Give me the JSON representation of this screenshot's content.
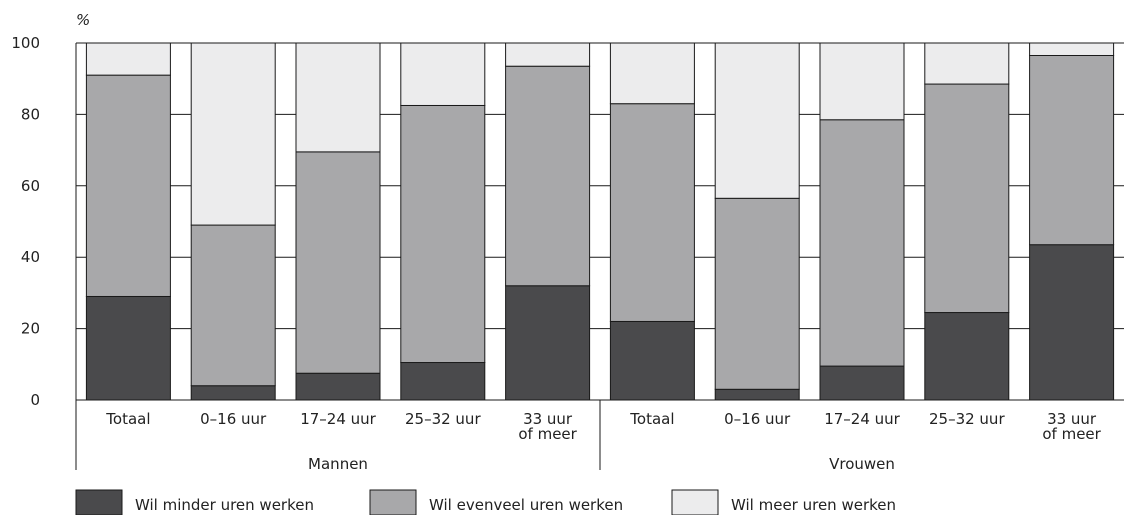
{
  "chart_data": {
    "type": "bar",
    "stacked": true,
    "y_unit_label": "%",
    "ylim": [
      0,
      100
    ],
    "yticks": [
      0,
      20,
      40,
      60,
      80,
      100
    ],
    "grid": true,
    "groups": [
      {
        "name": "Mannen",
        "categories": [
          {
            "lines": [
              "Totaal"
            ]
          },
          {
            "lines": [
              "0–16 uur"
            ]
          },
          {
            "lines": [
              "17–24 uur"
            ]
          },
          {
            "lines": [
              "25–32 uur"
            ]
          },
          {
            "lines": [
              "33 uur",
              "of meer"
            ]
          }
        ]
      },
      {
        "name": "Vrouwen",
        "categories": [
          {
            "lines": [
              "Totaal"
            ]
          },
          {
            "lines": [
              "0–16 uur"
            ]
          },
          {
            "lines": [
              "17–24 uur"
            ]
          },
          {
            "lines": [
              "25–32 uur"
            ]
          },
          {
            "lines": [
              "33 uur",
              "of meer"
            ]
          }
        ]
      }
    ],
    "series": [
      {
        "name": "Wil minder uren werken",
        "color": "#4a4a4c",
        "values": [
          29,
          4,
          7.5,
          10.5,
          32,
          22,
          3,
          9.5,
          24.5,
          43.5
        ]
      },
      {
        "name": "Wil evenveel uren werken",
        "color": "#a8a8aa",
        "values": [
          62,
          45,
          62,
          72,
          61.5,
          61,
          53.5,
          69,
          64,
          53
        ]
      },
      {
        "name": "Wil meer uren werken",
        "color": "#ececed",
        "values": [
          9,
          51,
          30.5,
          17.5,
          6.5,
          17,
          43.5,
          21.5,
          11.5,
          3.5
        ]
      }
    ],
    "legend_placement": "bottom-left"
  }
}
